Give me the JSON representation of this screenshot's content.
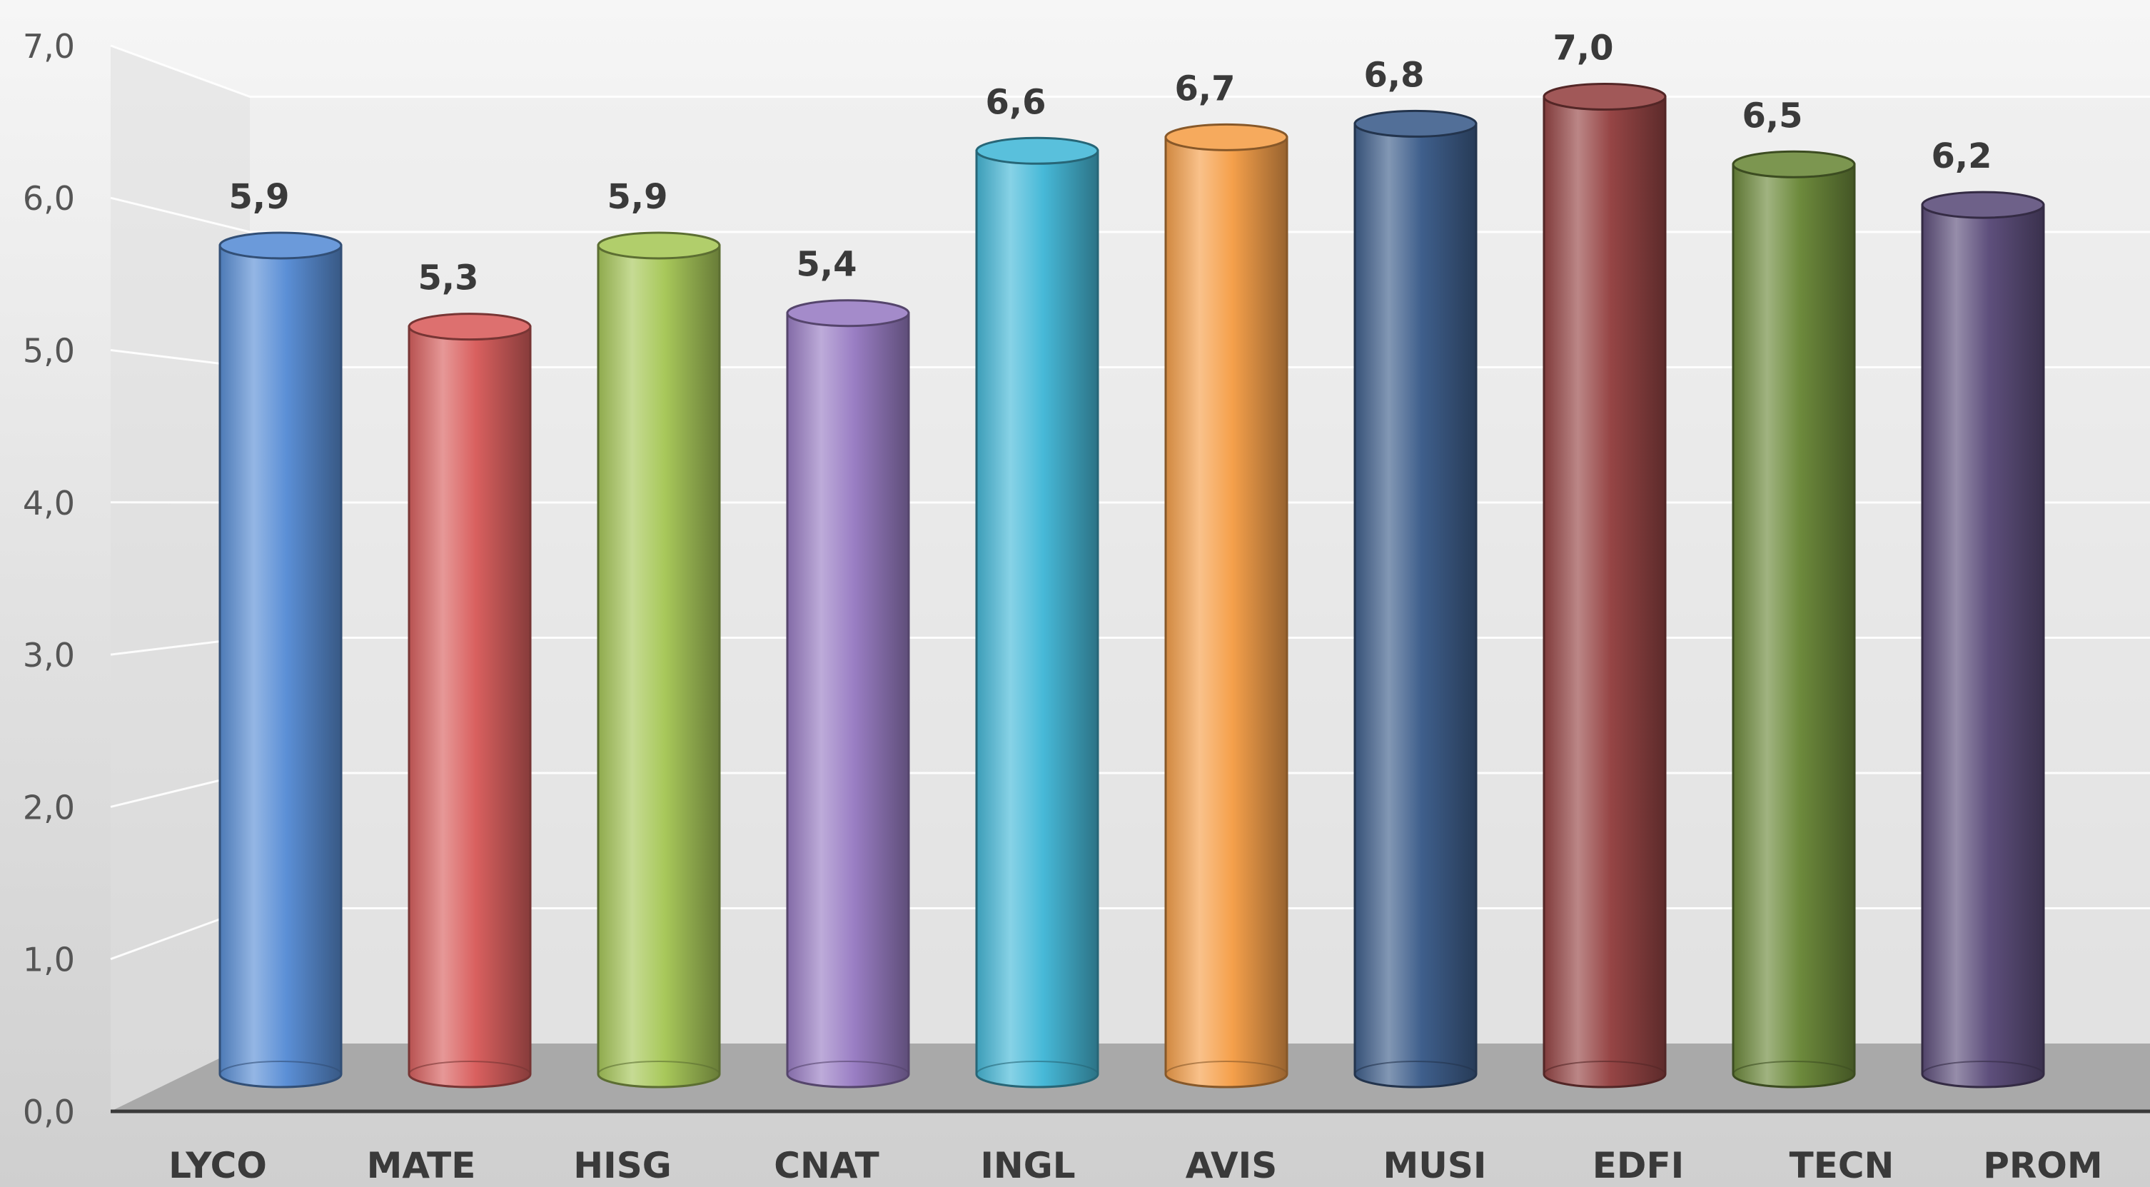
{
  "chart_data": {
    "type": "bar",
    "style": "3d-cylinder",
    "categories": [
      "LYCO",
      "MATE",
      "HISG",
      "CNAT",
      "INGL",
      "AVIS",
      "MUSI",
      "EDFI",
      "TECN",
      "PROM"
    ],
    "values": [
      5.9,
      5.3,
      5.9,
      5.4,
      6.6,
      6.7,
      6.8,
      7.0,
      6.5,
      6.2
    ],
    "value_labels": [
      "5,9",
      "5,3",
      "5,9",
      "5,4",
      "6,6",
      "6,7",
      "6,8",
      "7,0",
      "6,5",
      "6,2"
    ],
    "colors": [
      "#5b8fd6",
      "#d9605f",
      "#a8c85a",
      "#9a7ec4",
      "#47b9d8",
      "#f5a04b",
      "#3f5f8c",
      "#964545",
      "#6d8a3c",
      "#5e4f7c"
    ],
    "ylim": [
      0,
      7
    ],
    "yticks": [
      0,
      1,
      2,
      3,
      4,
      5,
      6,
      7
    ],
    "ytick_labels": [
      "0,0",
      "1,0",
      "2,0",
      "3,0",
      "4,0",
      "5,0",
      "6,0",
      "7,0"
    ],
    "grid": true,
    "legend": "none",
    "title": "",
    "xlabel": "",
    "ylabel": ""
  }
}
